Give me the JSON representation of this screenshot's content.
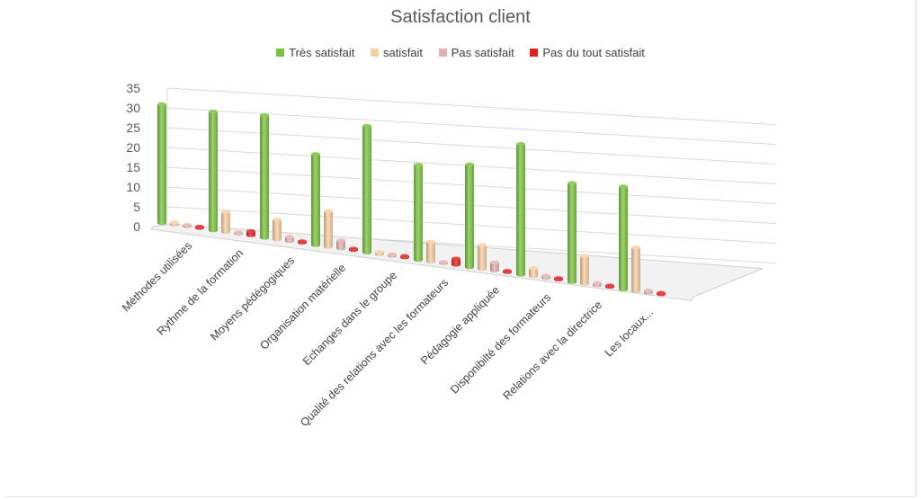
{
  "chart_data": {
    "type": "bar",
    "style": "3d-column",
    "title": "Satisfaction client",
    "xlabel": "",
    "ylabel": "",
    "ylim": [
      0,
      35
    ],
    "yticks": [
      0,
      5,
      10,
      15,
      20,
      25,
      30,
      35
    ],
    "grid": true,
    "legend_position": "top",
    "categories": [
      "Méthodes utilisées",
      "Rythme de la formation",
      "Moyens pédégogiques",
      "Organisation matérielle",
      "Echanges dans le groupe",
      "Qualité des relations avec les formateurs",
      "Pédagogie appliquée",
      "Disponibilté des formateurs",
      "Relations avec la directrice",
      "Les locaux..."
    ],
    "series": [
      {
        "name": "Très satisfait",
        "color": "#7dc242",
        "values": [
          30,
          30,
          31,
          23,
          32,
          24,
          26,
          33,
          25,
          26
        ]
      },
      {
        "name": "satisfait",
        "color": "#f6cfa3",
        "values": [
          0.5,
          5,
          5,
          9,
          0.5,
          5,
          6,
          2,
          7,
          11
        ]
      },
      {
        "name": "Pas satisfait",
        "color": "#e2b2b2",
        "values": [
          0.3,
          0,
          1,
          2,
          0.3,
          0,
          2,
          0.5,
          0.5,
          0.5
        ]
      },
      {
        "name": "Pas du tout satisfait",
        "color": "#e02020",
        "values": [
          0.2,
          1,
          0.3,
          0.3,
          0.3,
          1.5,
          0.3,
          0.3,
          0.3,
          0.3
        ]
      }
    ]
  }
}
